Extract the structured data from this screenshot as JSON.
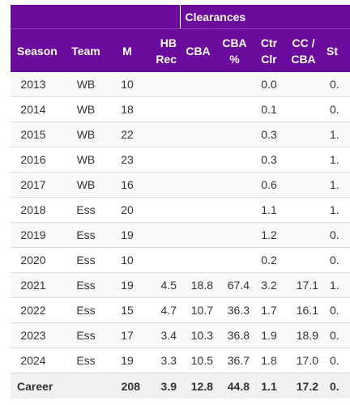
{
  "table": {
    "group_header": {
      "clearances_label": "Clearances"
    },
    "headers": {
      "season": "Season",
      "team": "Team",
      "m": "M",
      "hb_rec": "HB\nRec",
      "cba": "CBA",
      "cba_pct": "CBA\n%",
      "ctr_clr": "Ctr\nClr",
      "cc_cba": "CC /\nCBA",
      "st": "St"
    },
    "rows": [
      {
        "season": "2013",
        "team": "WB",
        "m": "10",
        "hb_rec": "",
        "cba": "",
        "cba_pct": "",
        "ctr_clr": "0.0",
        "cc_cba": "",
        "st": "0."
      },
      {
        "season": "2014",
        "team": "WB",
        "m": "18",
        "hb_rec": "",
        "cba": "",
        "cba_pct": "",
        "ctr_clr": "0.1",
        "cc_cba": "",
        "st": "0."
      },
      {
        "season": "2015",
        "team": "WB",
        "m": "22",
        "hb_rec": "",
        "cba": "",
        "cba_pct": "",
        "ctr_clr": "0.3",
        "cc_cba": "",
        "st": "1."
      },
      {
        "season": "2016",
        "team": "WB",
        "m": "23",
        "hb_rec": "",
        "cba": "",
        "cba_pct": "",
        "ctr_clr": "0.3",
        "cc_cba": "",
        "st": "1."
      },
      {
        "season": "2017",
        "team": "WB",
        "m": "16",
        "hb_rec": "",
        "cba": "",
        "cba_pct": "",
        "ctr_clr": "0.6",
        "cc_cba": "",
        "st": "1."
      },
      {
        "season": "2018",
        "team": "Ess",
        "m": "20",
        "hb_rec": "",
        "cba": "",
        "cba_pct": "",
        "ctr_clr": "1.1",
        "cc_cba": "",
        "st": "1."
      },
      {
        "season": "2019",
        "team": "Ess",
        "m": "19",
        "hb_rec": "",
        "cba": "",
        "cba_pct": "",
        "ctr_clr": "1.2",
        "cc_cba": "",
        "st": "0."
      },
      {
        "season": "2020",
        "team": "Ess",
        "m": "10",
        "hb_rec": "",
        "cba": "",
        "cba_pct": "",
        "ctr_clr": "0.2",
        "cc_cba": "",
        "st": "0."
      },
      {
        "season": "2021",
        "team": "Ess",
        "m": "19",
        "hb_rec": "4.5",
        "cba": "18.8",
        "cba_pct": "67.4",
        "ctr_clr": "3.2",
        "cc_cba": "17.1",
        "st": "1."
      },
      {
        "season": "2022",
        "team": "Ess",
        "m": "15",
        "hb_rec": "4.7",
        "cba": "10.7",
        "cba_pct": "36.3",
        "ctr_clr": "1.7",
        "cc_cba": "16.1",
        "st": "0."
      },
      {
        "season": "2023",
        "team": "Ess",
        "m": "17",
        "hb_rec": "3.4",
        "cba": "10.3",
        "cba_pct": "36.8",
        "ctr_clr": "1.9",
        "cc_cba": "18.9",
        "st": "0."
      },
      {
        "season": "2024",
        "team": "Ess",
        "m": "19",
        "hb_rec": "3.3",
        "cba": "10.5",
        "cba_pct": "36.7",
        "ctr_clr": "1.8",
        "cc_cba": "17.0",
        "st": "0."
      }
    ],
    "footer": {
      "season": "Career",
      "team": "",
      "m": "208",
      "hb_rec": "3.9",
      "cba": "12.8",
      "cba_pct": "44.8",
      "ctr_clr": "1.1",
      "cc_cba": "17.2",
      "st": "0."
    }
  },
  "colors": {
    "header_bg": "#6b0b9e",
    "header_text": "#ffffff",
    "row_alt_bg": "#f9f9f9",
    "footer_bg": "#f1f1f1"
  }
}
